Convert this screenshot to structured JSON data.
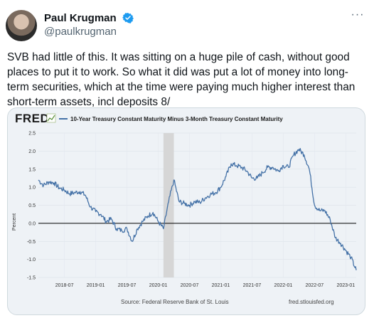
{
  "tweet": {
    "author_name": "Paul Krugman",
    "author_handle": "@paulkrugman",
    "text": "SVB had little of this. It was sitting on a huge pile of cash, without good places to put it to work. So what it did was put a lot of money into long-term securities, which at the time were paying much higher interest than short-term assets, incl deposits 8/",
    "more_icon": "ellipsis-icon",
    "verified_icon": "verified-badge-icon",
    "accent_color": "#1d9bf0"
  },
  "chart_data": {
    "type": "line",
    "logo": "FRED",
    "series": [
      {
        "name": "10-Year Treasury Constant Maturity Minus 3-Month Treasury Constant Maturity",
        "color": "#4572a7",
        "points": [
          [
            "2018-02",
            1.2
          ],
          [
            "2018-03",
            1.05
          ],
          [
            "2018-04",
            1.15
          ],
          [
            "2018-05",
            1.12
          ],
          [
            "2018-06",
            0.98
          ],
          [
            "2018-07",
            0.92
          ],
          [
            "2018-08",
            0.82
          ],
          [
            "2018-09",
            0.85
          ],
          [
            "2018-10",
            0.88
          ],
          [
            "2018-11",
            0.78
          ],
          [
            "2018-12",
            0.45
          ],
          [
            "2019-01",
            0.32
          ],
          [
            "2019-02",
            0.25
          ],
          [
            "2019-03",
            0.05
          ],
          [
            "2019-04",
            0.12
          ],
          [
            "2019-05",
            -0.15
          ],
          [
            "2019-06",
            -0.2
          ],
          [
            "2019-07",
            -0.15
          ],
          [
            "2019-08",
            -0.5
          ],
          [
            "2019-09",
            -0.15
          ],
          [
            "2019-10",
            0.05
          ],
          [
            "2019-11",
            0.2
          ],
          [
            "2019-12",
            0.3
          ],
          [
            "2020-01",
            0.05
          ],
          [
            "2020-02",
            -0.15
          ],
          [
            "2020-03",
            0.6
          ],
          [
            "2020-04",
            1.2
          ],
          [
            "2020-05",
            0.6
          ],
          [
            "2020-06",
            0.55
          ],
          [
            "2020-07",
            0.5
          ],
          [
            "2020-08",
            0.6
          ],
          [
            "2020-09",
            0.58
          ],
          [
            "2020-10",
            0.7
          ],
          [
            "2020-11",
            0.8
          ],
          [
            "2020-12",
            0.85
          ],
          [
            "2021-01",
            1.0
          ],
          [
            "2021-02",
            1.3
          ],
          [
            "2021-03",
            1.65
          ],
          [
            "2021-04",
            1.6
          ],
          [
            "2021-05",
            1.55
          ],
          [
            "2021-06",
            1.45
          ],
          [
            "2021-07",
            1.25
          ],
          [
            "2021-08",
            1.25
          ],
          [
            "2021-09",
            1.4
          ],
          [
            "2021-10",
            1.55
          ],
          [
            "2021-11",
            1.55
          ],
          [
            "2021-12",
            1.45
          ],
          [
            "2022-01",
            1.6
          ],
          [
            "2022-02",
            1.55
          ],
          [
            "2022-03",
            1.9
          ],
          [
            "2022-04",
            2.05
          ],
          [
            "2022-05",
            1.9
          ],
          [
            "2022-06",
            1.5
          ],
          [
            "2022-07",
            0.5
          ],
          [
            "2022-08",
            0.35
          ],
          [
            "2022-09",
            0.35
          ],
          [
            "2022-10",
            0.1
          ],
          [
            "2022-11",
            -0.4
          ],
          [
            "2022-12",
            -0.55
          ],
          [
            "2023-01",
            -0.75
          ],
          [
            "2023-02",
            -0.95
          ],
          [
            "2023-03",
            -1.3
          ]
        ]
      }
    ],
    "ylabel": "Percent",
    "ylim": [
      -1.5,
      2.5
    ],
    "yticks": [
      "2.5",
      "2.0",
      "1.5",
      "1.0",
      "0.5",
      "0.0",
      "-0.5",
      "-1.0",
      "-1.5"
    ],
    "xticks": [
      "2018-07",
      "2019-01",
      "2019-07",
      "2020-01",
      "2020-07",
      "2021-01",
      "2021-07",
      "2022-01",
      "2022-07",
      "2023-01"
    ],
    "recession_shading": [
      "2020-02",
      "2020-04"
    ],
    "zero_line": true,
    "grid": true,
    "source": "Source: Federal Reserve Bank of St. Louis",
    "site": "fred.stlouisfed.org"
  }
}
